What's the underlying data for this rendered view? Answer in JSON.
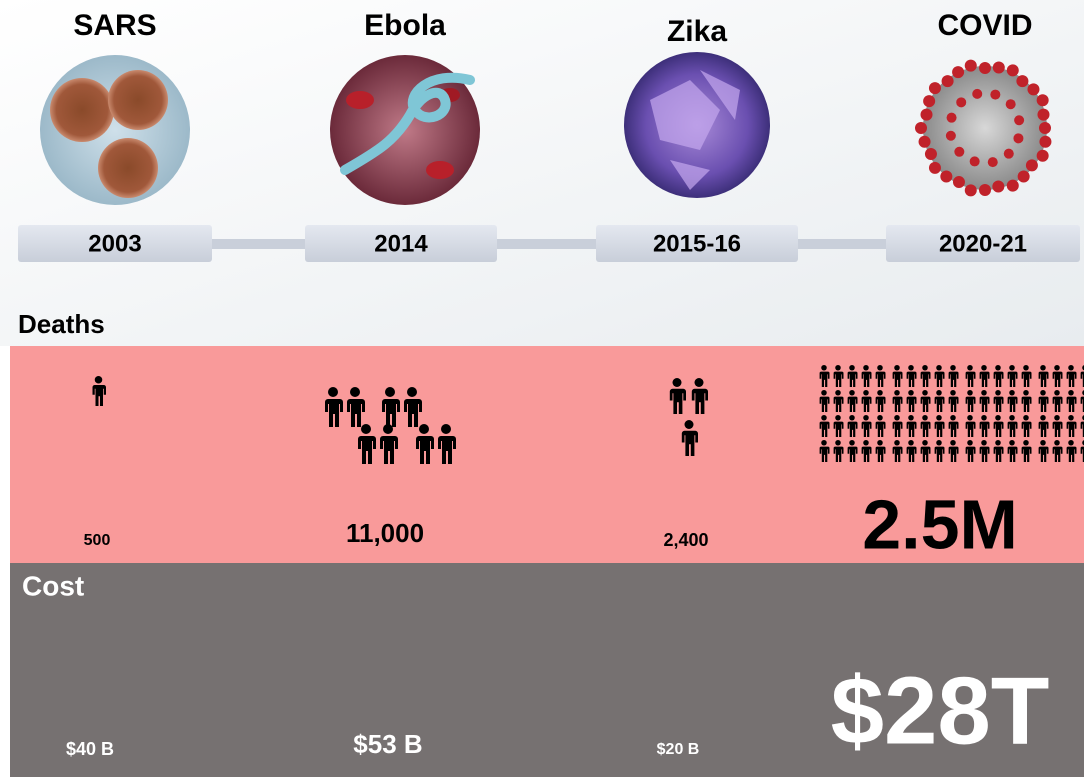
{
  "sections": {
    "deaths": "Deaths",
    "cost": "Cost"
  },
  "items": [
    {
      "name": "SARS",
      "period": "2003",
      "deaths": "500",
      "cost": "$40 B"
    },
    {
      "name": "Ebola",
      "period": "2014",
      "deaths": "11,000",
      "cost": "$53 B"
    },
    {
      "name": "Zika",
      "period": "2015-16",
      "deaths": "2,400",
      "cost": "$20 B"
    },
    {
      "name": "COVID",
      "period": "2020-21",
      "deaths": "2.5M",
      "cost": "$28T"
    }
  ]
}
